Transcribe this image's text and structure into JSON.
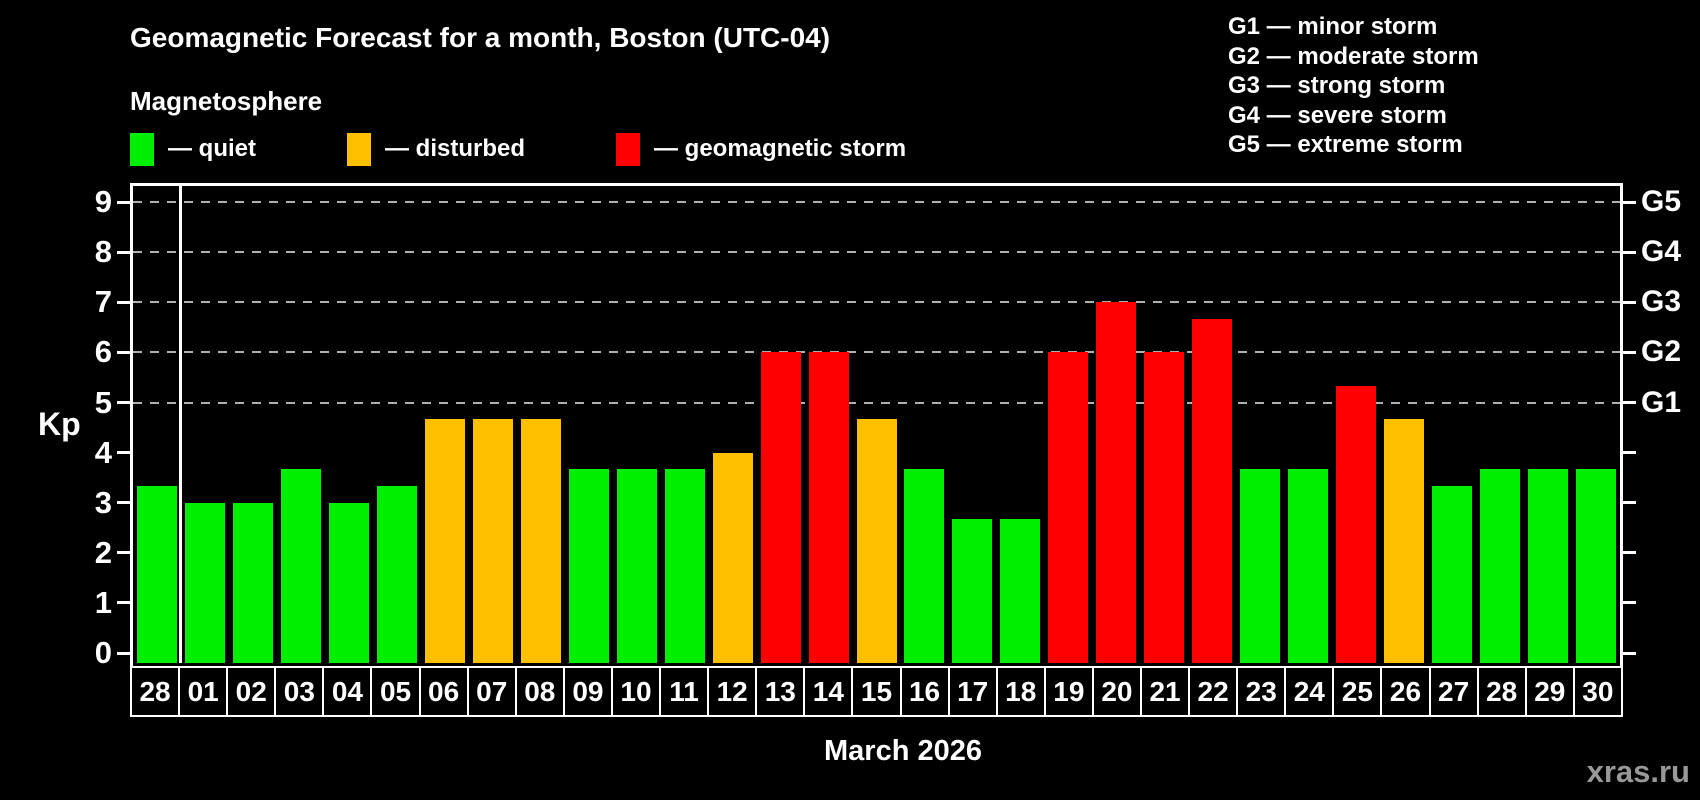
{
  "header": {
    "title": "Geomagnetic Forecast for a month, Boston (UTC-04)",
    "subtitle": "Magnetosphere"
  },
  "legend": {
    "items": [
      {
        "key": "quiet",
        "label": "— quiet",
        "color": "#00EE00"
      },
      {
        "key": "disturbed",
        "label": "— disturbed",
        "color": "#FFC000"
      },
      {
        "key": "storm",
        "label": "— geomagnetic storm",
        "color": "#FF0000"
      }
    ]
  },
  "g_scale_legend": {
    "lines": [
      "G1 — minor storm",
      "G2 — moderate storm",
      "G3 — strong storm",
      "G4 — severe storm",
      "G5 — extreme storm"
    ]
  },
  "watermark": "xras.ru",
  "chart_data": {
    "type": "bar",
    "title": "Geomagnetic Forecast for a month, Boston (UTC-04)",
    "subtitle": "Magnetosphere",
    "xlabel": "March 2026",
    "ylabel": "Kp",
    "ylim": [
      0,
      9
    ],
    "yticks": [
      0,
      1,
      2,
      3,
      4,
      5,
      6,
      7,
      8,
      9
    ],
    "gridlines_at_kp": [
      5,
      6,
      7,
      8,
      9
    ],
    "grid": "dashed, only at storm levels Kp 5-9",
    "legend_position": "top-left",
    "right_axis_labels": [
      {
        "kp": 5,
        "label": "G1"
      },
      {
        "kp": 6,
        "label": "G2"
      },
      {
        "kp": 7,
        "label": "G3"
      },
      {
        "kp": 8,
        "label": "G4"
      },
      {
        "kp": 9,
        "label": "G5"
      }
    ],
    "month_separator_after_index": 0,
    "categories": [
      "28",
      "01",
      "02",
      "03",
      "04",
      "05",
      "06",
      "07",
      "08",
      "09",
      "10",
      "11",
      "12",
      "13",
      "14",
      "15",
      "16",
      "17",
      "18",
      "19",
      "20",
      "21",
      "22",
      "23",
      "24",
      "25",
      "26",
      "27",
      "28",
      "29",
      "30"
    ],
    "values": [
      3.33,
      3,
      3,
      3.67,
      3,
      3.33,
      4.67,
      4.67,
      4.67,
      3.67,
      3.67,
      3.67,
      4,
      6,
      6,
      4.67,
      3.67,
      2.67,
      2.67,
      6,
      7,
      6,
      6.67,
      3.67,
      3.67,
      5.33,
      4.67,
      3.33,
      3.67,
      3.67,
      3.67
    ],
    "status": [
      "quiet",
      "quiet",
      "quiet",
      "quiet",
      "quiet",
      "quiet",
      "disturbed",
      "disturbed",
      "disturbed",
      "quiet",
      "quiet",
      "quiet",
      "disturbed",
      "storm",
      "storm",
      "disturbed",
      "quiet",
      "quiet",
      "quiet",
      "storm",
      "storm",
      "storm",
      "storm",
      "quiet",
      "quiet",
      "storm",
      "disturbed",
      "quiet",
      "quiet",
      "quiet",
      "quiet"
    ]
  }
}
